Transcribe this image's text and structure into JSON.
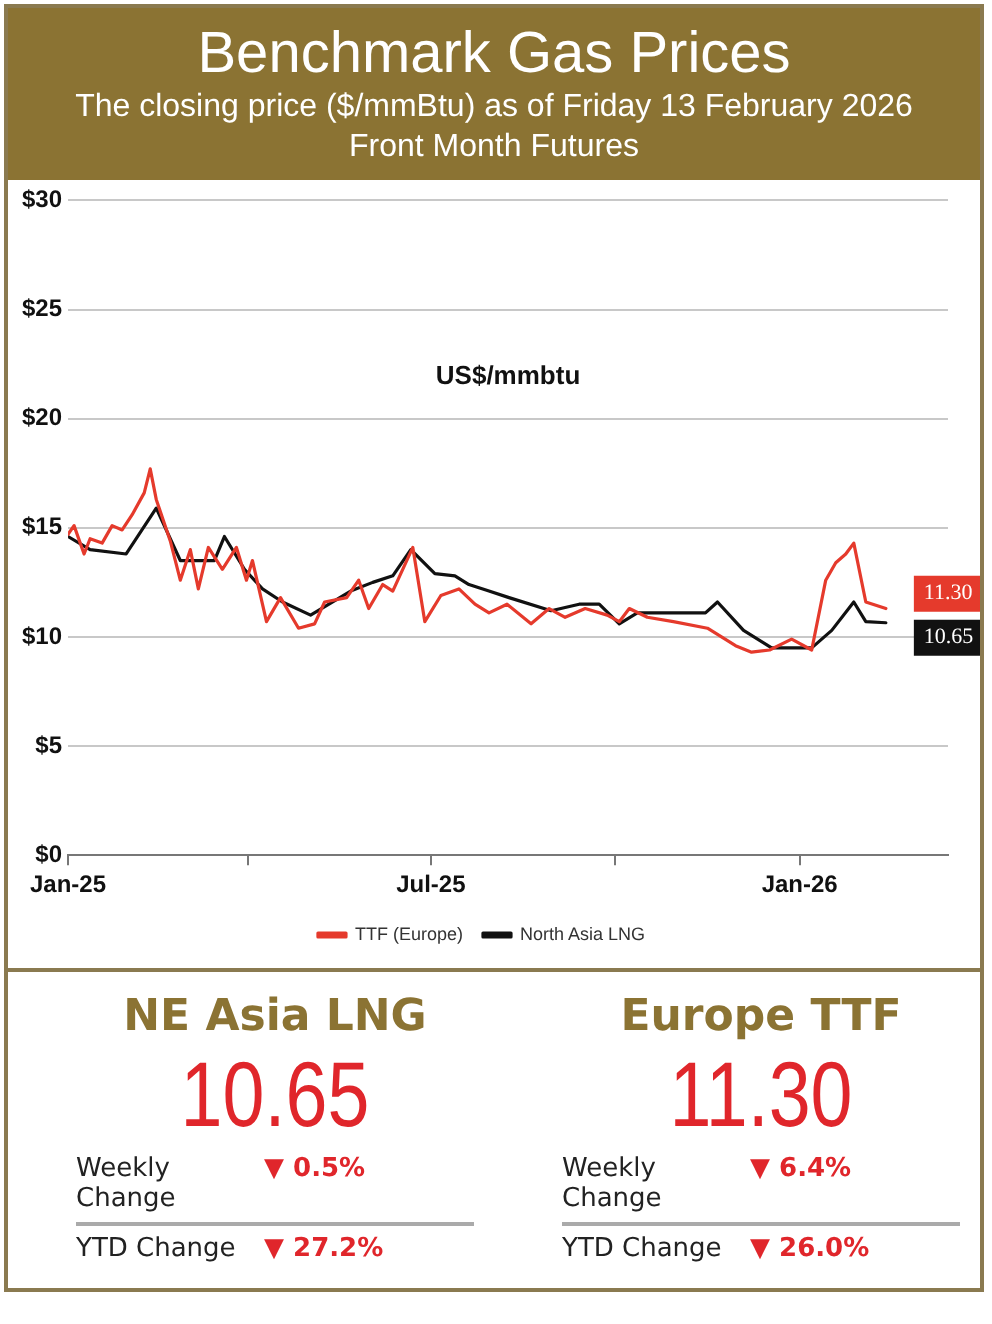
{
  "chart_data": [
    {
      "type": "line",
      "title": "Benchmark Gas Prices",
      "subtitle": "The closing price ($/mmBtu) as of Friday 13 February 2026\nFront Month  Futures",
      "xlim": [
        "2025-01-01",
        "2026-03-16"
      ],
      "xticks": [
        {
          "value": "2025-01-01",
          "label": "Jan-25"
        },
        {
          "value": "2025-04-01",
          "label": null
        },
        {
          "value": "2025-07-01",
          "label": "Jul-25"
        },
        {
          "value": "2025-10-01",
          "label": null
        },
        {
          "value": "2026-01-01",
          "label": "Jan-26"
        }
      ],
      "ylim": [
        0,
        30
      ],
      "yticks": [
        {
          "value": 0,
          "label": "$0"
        },
        {
          "value": 5,
          "label": "$5"
        },
        {
          "value": 10,
          "label": "$10"
        },
        {
          "value": 15,
          "label": "$15"
        },
        {
          "value": 20,
          "label": "$20"
        },
        {
          "value": 25,
          "label": "$25"
        },
        {
          "value": 30,
          "label": "$30"
        }
      ],
      "grid": "y",
      "legend": "bottom",
      "marker": "none",
      "line_style": "solid",
      "series": [
        {
          "name": "TTF (Europe)",
          "color": "#e53a2c",
          "x": [
            "2025-01-01",
            "2025-01-04",
            "2025-01-09",
            "2025-01-12",
            "2025-01-18",
            "2025-01-23",
            "2025-01-28",
            "2025-02-02",
            "2025-02-08",
            "2025-02-11",
            "2025-02-14",
            "2025-02-21",
            "2025-02-26",
            "2025-03-03",
            "2025-03-07",
            "2025-03-12",
            "2025-03-19",
            "2025-03-26",
            "2025-03-31",
            "2025-04-03",
            "2025-04-10",
            "2025-04-17",
            "2025-04-26",
            "2025-05-04",
            "2025-05-09",
            "2025-05-20",
            "2025-05-26",
            "2025-05-31",
            "2025-06-07",
            "2025-06-12",
            "2025-06-16",
            "2025-06-22",
            "2025-06-28",
            "2025-07-06",
            "2025-07-15",
            "2025-07-23",
            "2025-07-30",
            "2025-08-08",
            "2025-08-20",
            "2025-08-29",
            "2025-09-06",
            "2025-09-16",
            "2025-09-27",
            "2025-10-03",
            "2025-10-08",
            "2025-10-17",
            "2025-10-30",
            "2025-11-16",
            "2025-11-30",
            "2025-12-08",
            "2025-12-17",
            "2025-12-28",
            "2026-01-07",
            "2026-01-14",
            "2026-01-19",
            "2026-01-24",
            "2026-01-28",
            "2026-02-03",
            "2026-02-13"
          ],
          "values": [
            14.7,
            15.1,
            13.8,
            14.5,
            14.3,
            15.1,
            14.9,
            15.6,
            16.6,
            17.7,
            16.3,
            14.4,
            12.6,
            14.0,
            12.2,
            14.1,
            13.1,
            14.1,
            12.6,
            13.5,
            10.7,
            11.8,
            10.4,
            10.6,
            11.6,
            11.8,
            12.6,
            11.3,
            12.4,
            12.1,
            12.9,
            14.1,
            10.7,
            11.9,
            12.2,
            11.5,
            11.1,
            11.5,
            10.6,
            11.3,
            10.9,
            11.3,
            11.0,
            10.7,
            11.3,
            10.9,
            10.7,
            10.4,
            9.6,
            9.3,
            9.4,
            9.9,
            9.4,
            12.6,
            13.4,
            13.8,
            14.3,
            11.6,
            11.3
          ]
        },
        {
          "name": "North Asia LNG",
          "color": "#111111",
          "x": [
            "2025-01-01",
            "2025-01-12",
            "2025-01-30",
            "2025-02-14",
            "2025-02-26",
            "2025-03-15",
            "2025-03-20",
            "2025-03-30",
            "2025-04-08",
            "2025-04-18",
            "2025-05-02",
            "2025-05-22",
            "2025-06-02",
            "2025-06-12",
            "2025-06-21",
            "2025-07-03",
            "2025-07-13",
            "2025-07-20",
            "2025-07-30",
            "2025-08-09",
            "2025-08-30",
            "2025-09-13",
            "2025-09-23",
            "2025-10-03",
            "2025-10-12",
            "2025-10-30",
            "2025-11-15",
            "2025-11-21",
            "2025-12-04",
            "2025-12-18",
            "2026-01-07",
            "2026-01-17",
            "2026-01-28",
            "2026-02-03",
            "2026-02-13"
          ],
          "values": [
            14.6,
            14.0,
            13.8,
            15.9,
            13.5,
            13.5,
            14.6,
            13.1,
            12.2,
            11.6,
            11.0,
            12.1,
            12.5,
            12.8,
            14.0,
            12.9,
            12.8,
            12.4,
            12.1,
            11.8,
            11.2,
            11.5,
            11.5,
            10.6,
            11.1,
            11.1,
            11.1,
            11.6,
            10.3,
            9.5,
            9.5,
            10.3,
            11.6,
            10.7,
            10.65
          ]
        }
      ],
      "annotations": [
        "US$/mmbtu",
        {
          "text": "11.30",
          "x": "2026-02-13",
          "y": 11.3
        },
        {
          "text": "10.65",
          "x": "2026-02-13",
          "y": 10.65
        }
      ]
    },
    {
      "type": "other",
      "annotations": [
        "NE Asia LNG",
        "10.65",
        "Weekly Change",
        "▼ 0.5%",
        "YTD Change",
        "▼ 27.2%",
        "Europe TTF",
        "11.30",
        "Weekly Change",
        "▼ 6.4%",
        "YTD Change",
        "▼ 26.0%"
      ]
    }
  ]
}
